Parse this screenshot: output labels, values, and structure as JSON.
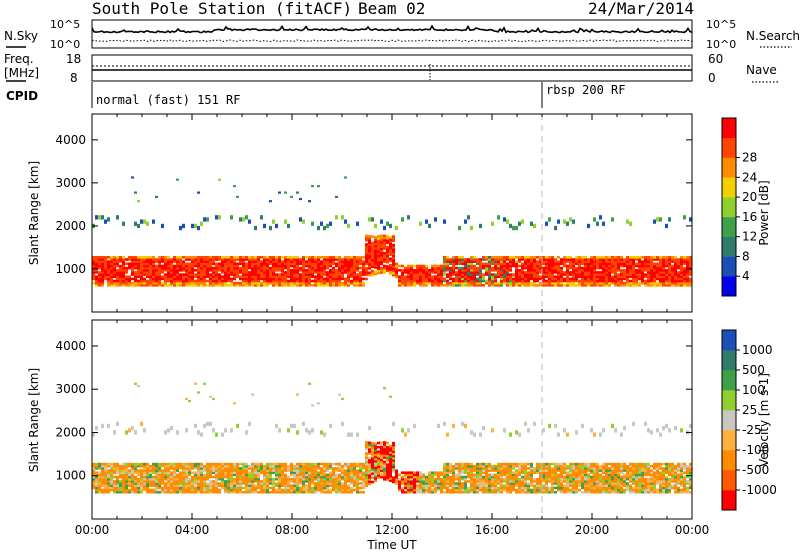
{
  "header": {
    "station": "South Pole Station (fitACF)",
    "beam": "Beam 02",
    "date": "24/Mar/2014"
  },
  "noise_panel": {
    "left_label": "N.Sky",
    "right_label": "N.Search",
    "left_ticks": [
      "10^5",
      "10^0"
    ],
    "right_ticks": [
      "10^5",
      "10^0"
    ]
  },
  "freq_panel": {
    "left_label": "Freq.",
    "left_unit": "[MHz]",
    "right_label": "Nave",
    "left_ticks": [
      "18",
      "8"
    ],
    "right_ticks": [
      "60",
      "0"
    ]
  },
  "cpid": {
    "label": "CPID",
    "programs": [
      {
        "name": "normal (fast) 151 RF",
        "start_hour": 0
      },
      {
        "name": "rbsp 200 RF",
        "start_hour": 18
      }
    ]
  },
  "colors": {
    "power_scale": [
      "#0000ee",
      "#1a4fb8",
      "#2e7d6a",
      "#3fa04a",
      "#8fd12e",
      "#f0d000",
      "#ff8c00",
      "#ff4500",
      "#ff0000"
    ],
    "velocity_scale": [
      "#ff0000",
      "#ff5a00",
      "#ff8c00",
      "#ffb040",
      "#c8c8c0",
      "#8fd12e",
      "#3fa04a",
      "#2e7d6a",
      "#1a4fb8"
    ]
  },
  "chart_data": [
    {
      "type": "heatmap",
      "title": "Power",
      "ylabel": "Slant Range [km]",
      "xlabel": "Time UT",
      "x_ticks": [
        "00:00",
        "04:00",
        "08:00",
        "12:00",
        "16:00",
        "20:00",
        "00:00"
      ],
      "xlim_hours": [
        0,
        24
      ],
      "ylim": [
        0,
        4600
      ],
      "y_ticks": [
        1000,
        2000,
        3000,
        4000
      ],
      "colorbar": {
        "label": "Power [dB]",
        "ticks": [
          "4",
          "8",
          "12",
          "16",
          "20",
          "24",
          "28"
        ]
      },
      "bands": [
        {
          "range_km": [
            600,
            1300
          ],
          "dominant": "28 dB",
          "hours": [
            0,
            24
          ]
        },
        {
          "range_km": [
            1900,
            2200
          ],
          "dominant": "8-16 dB",
          "hours": [
            0,
            24
          ]
        },
        {
          "range_km": [
            2600,
            3200
          ],
          "dominant": "8-16 dB",
          "hours": [
            1,
            12
          ]
        }
      ]
    },
    {
      "type": "heatmap",
      "title": "Velocity",
      "ylabel": "Slant Range [km]",
      "xlabel": "Time UT",
      "x_ticks": [
        "00:00",
        "04:00",
        "08:00",
        "12:00",
        "16:00",
        "20:00",
        "00:00"
      ],
      "xlim_hours": [
        0,
        24
      ],
      "ylim": [
        0,
        4600
      ],
      "y_ticks": [
        1000,
        2000,
        3000,
        4000
      ],
      "colorbar": {
        "label": "Velocity [m s-1]",
        "ticks": [
          "1000",
          "500",
          "100",
          "25",
          "-25",
          "-100",
          "-500",
          "-1000"
        ]
      },
      "bands": [
        {
          "range_km": [
            600,
            1300
          ],
          "dominant": "-100 m/s",
          "hours": [
            0,
            24
          ]
        },
        {
          "range_km": [
            1900,
            2200
          ],
          "dominant": "-25 to 25 m/s",
          "hours": [
            0,
            24
          ]
        }
      ]
    }
  ],
  "xaxis": {
    "ticks": [
      "00:00",
      "04:00",
      "08:00",
      "12:00",
      "16:00",
      "20:00",
      "00:00"
    ],
    "title": "Time UT"
  }
}
